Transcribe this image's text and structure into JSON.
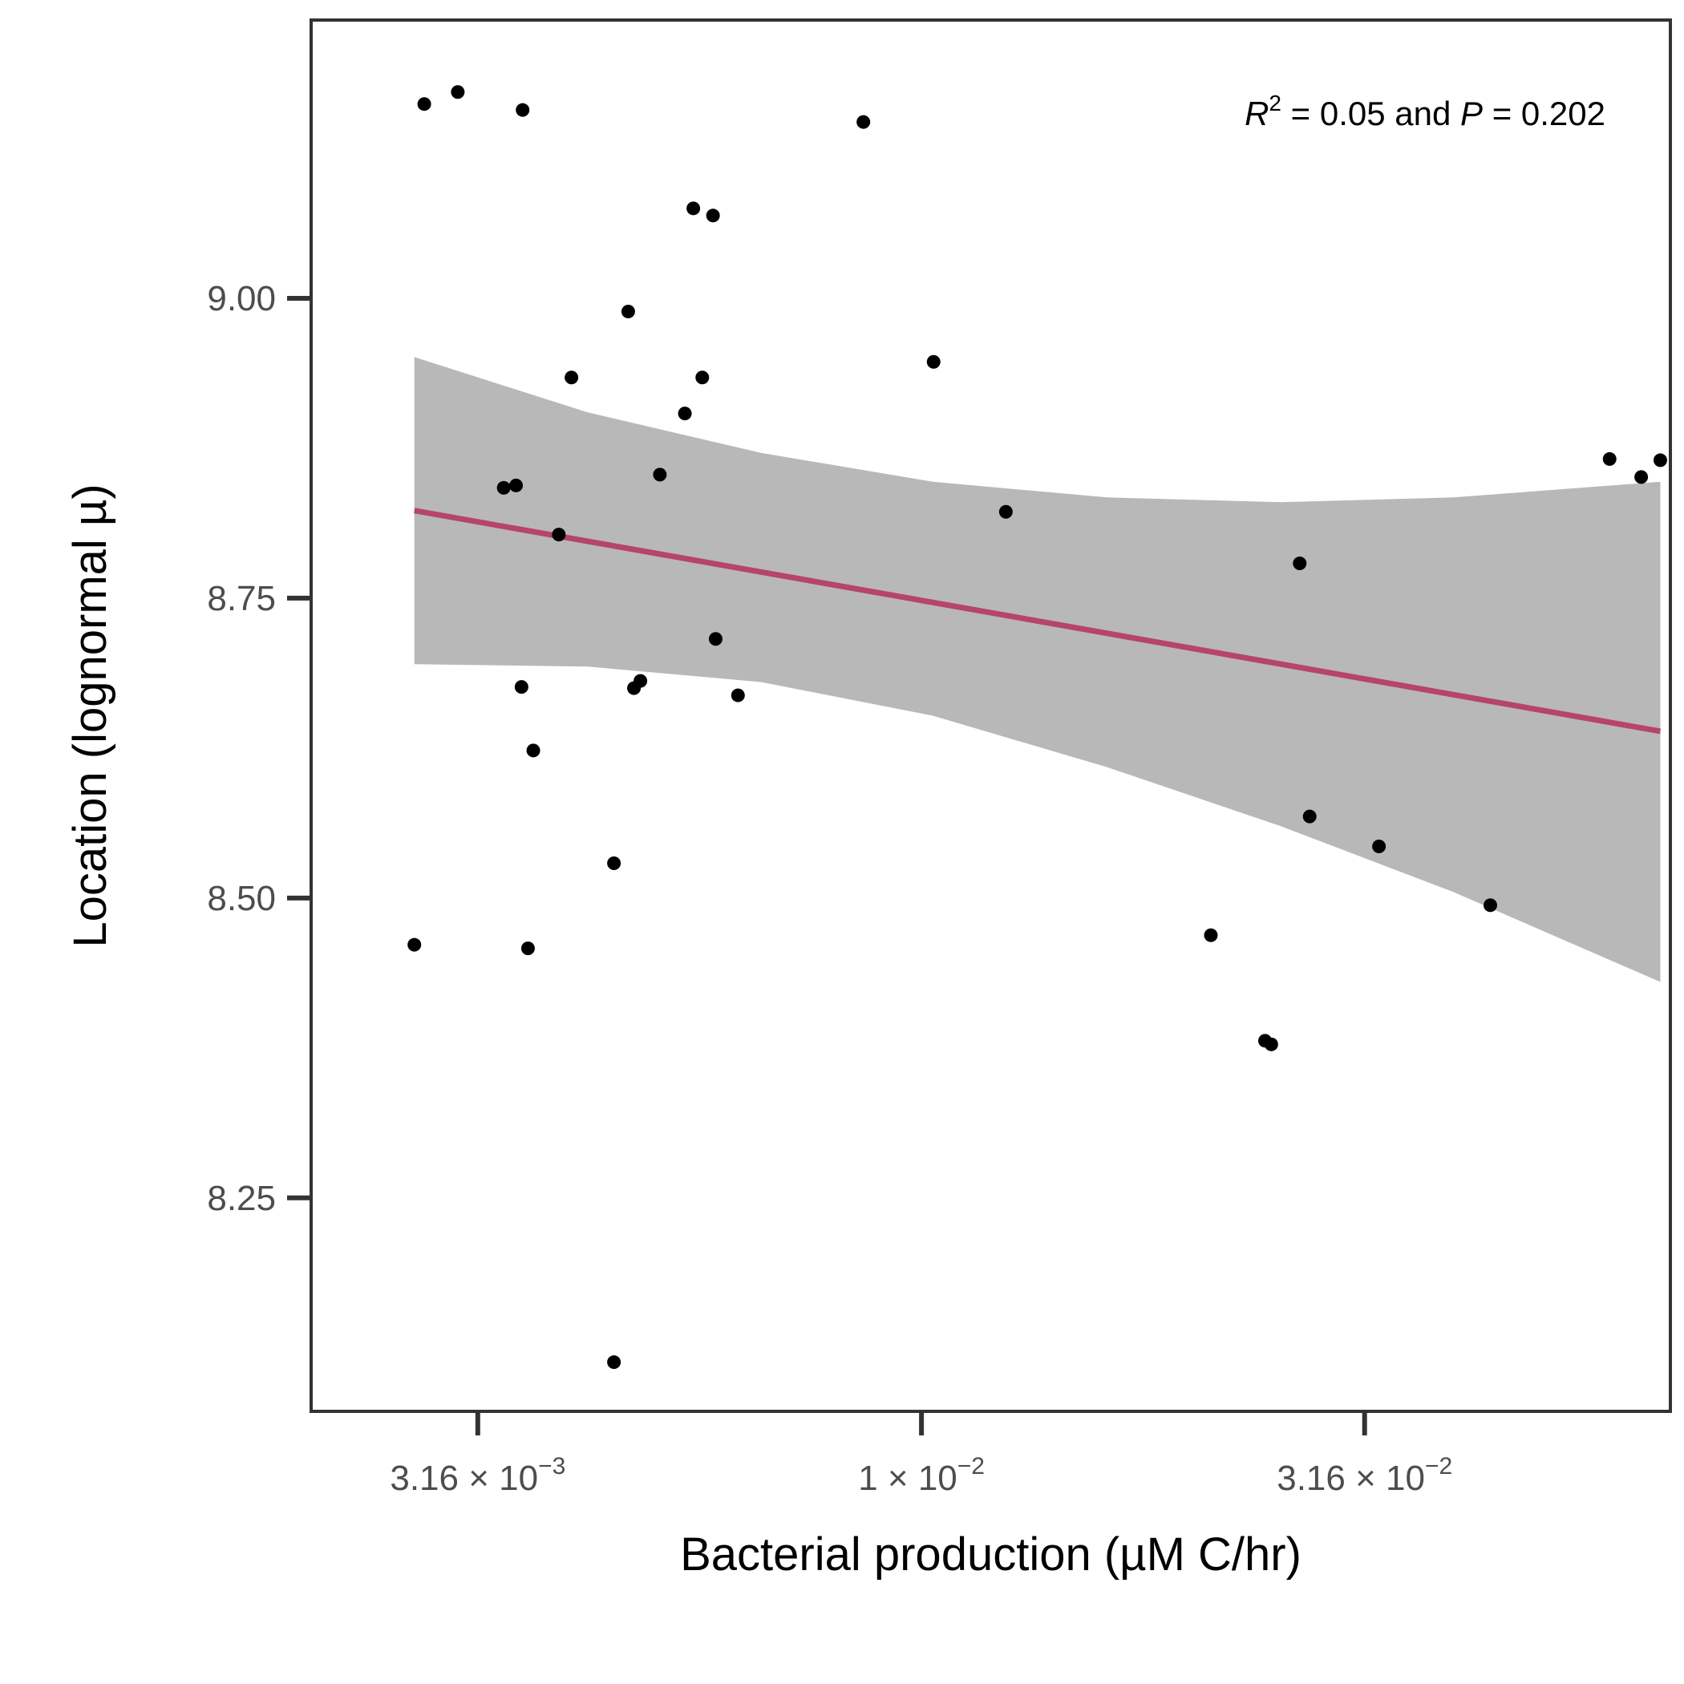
{
  "chart_data": {
    "type": "scatter",
    "xlabel": "Bacterial production (µM C/hr)",
    "ylabel": "Location (lognormal µ)",
    "x_scale": "log10",
    "xlim": [
      0.00205,
      0.0699
    ],
    "ylim": [
      8.072,
      9.232
    ],
    "x_ticks": [
      {
        "value": 0.00316,
        "mantissa": "3.16",
        "exponent": "−3"
      },
      {
        "value": 0.01,
        "mantissa": "1",
        "exponent": "−2"
      },
      {
        "value": 0.0316,
        "mantissa": "3.16",
        "exponent": "−2"
      }
    ],
    "y_ticks": [
      {
        "value": 8.25,
        "label": "8.25"
      },
      {
        "value": 8.5,
        "label": "8.50"
      },
      {
        "value": 8.75,
        "label": "8.75"
      },
      {
        "value": 9.0,
        "label": "9.00"
      }
    ],
    "annotation": {
      "r_symbol": "R",
      "r_exponent": "2",
      "r_value_text": " = 0.05 and ",
      "p_symbol": "P",
      "p_value_text": " = 0.202"
    },
    "grid": false,
    "colors": {
      "points": "#000000",
      "fit_line": "#b5446e",
      "confidence_band": "#b8b8b8",
      "panel_border": "#333333"
    },
    "fit": {
      "x": [
        0.00268,
        0.0681
      ],
      "y": [
        8.823,
        8.639
      ]
    },
    "confidence_band": {
      "x": [
        0.00268,
        0.0042,
        0.0066,
        0.0103,
        0.0162,
        0.0254,
        0.0398,
        0.0681
      ],
      "upper": [
        8.951,
        8.905,
        8.871,
        8.847,
        8.834,
        8.83,
        8.834,
        8.847
      ],
      "lower": [
        8.695,
        8.693,
        8.68,
        8.652,
        8.609,
        8.56,
        8.505,
        8.43
      ]
    },
    "points": [
      {
        "x": 0.00275,
        "y": 9.162
      },
      {
        "x": 0.003,
        "y": 9.172
      },
      {
        "x": 0.00355,
        "y": 9.157
      },
      {
        "x": 0.0086,
        "y": 9.147
      },
      {
        "x": 0.00553,
        "y": 9.075
      },
      {
        "x": 0.00582,
        "y": 9.069
      },
      {
        "x": 0.00467,
        "y": 8.989
      },
      {
        "x": 0.01032,
        "y": 8.947
      },
      {
        "x": 0.00403,
        "y": 8.934
      },
      {
        "x": 0.00566,
        "y": 8.934
      },
      {
        "x": 0.00541,
        "y": 8.904
      },
      {
        "x": 0.00507,
        "y": 8.853
      },
      {
        "x": 0.00338,
        "y": 8.842
      },
      {
        "x": 0.00349,
        "y": 8.844
      },
      {
        "x": 0.0039,
        "y": 8.803
      },
      {
        "x": 0.01245,
        "y": 8.822
      },
      {
        "x": 0.0597,
        "y": 8.866
      },
      {
        "x": 0.0648,
        "y": 8.851
      },
      {
        "x": 0.0681,
        "y": 8.865
      },
      {
        "x": 0.0267,
        "y": 8.779
      },
      {
        "x": 0.00586,
        "y": 8.716
      },
      {
        "x": 0.00354,
        "y": 8.676
      },
      {
        "x": 0.00474,
        "y": 8.675
      },
      {
        "x": 0.00482,
        "y": 8.681
      },
      {
        "x": 0.00621,
        "y": 8.669
      },
      {
        "x": 0.00365,
        "y": 8.623
      },
      {
        "x": 0.0274,
        "y": 8.568
      },
      {
        "x": 0.0328,
        "y": 8.543
      },
      {
        "x": 0.0438,
        "y": 8.494
      },
      {
        "x": 0.0045,
        "y": 8.529
      },
      {
        "x": 0.00268,
        "y": 8.461
      },
      {
        "x": 0.0036,
        "y": 8.458
      },
      {
        "x": 0.0212,
        "y": 8.469
      },
      {
        "x": 0.0244,
        "y": 8.381
      },
      {
        "x": 0.0248,
        "y": 8.378
      },
      {
        "x": 0.0045,
        "y": 8.113
      }
    ]
  }
}
